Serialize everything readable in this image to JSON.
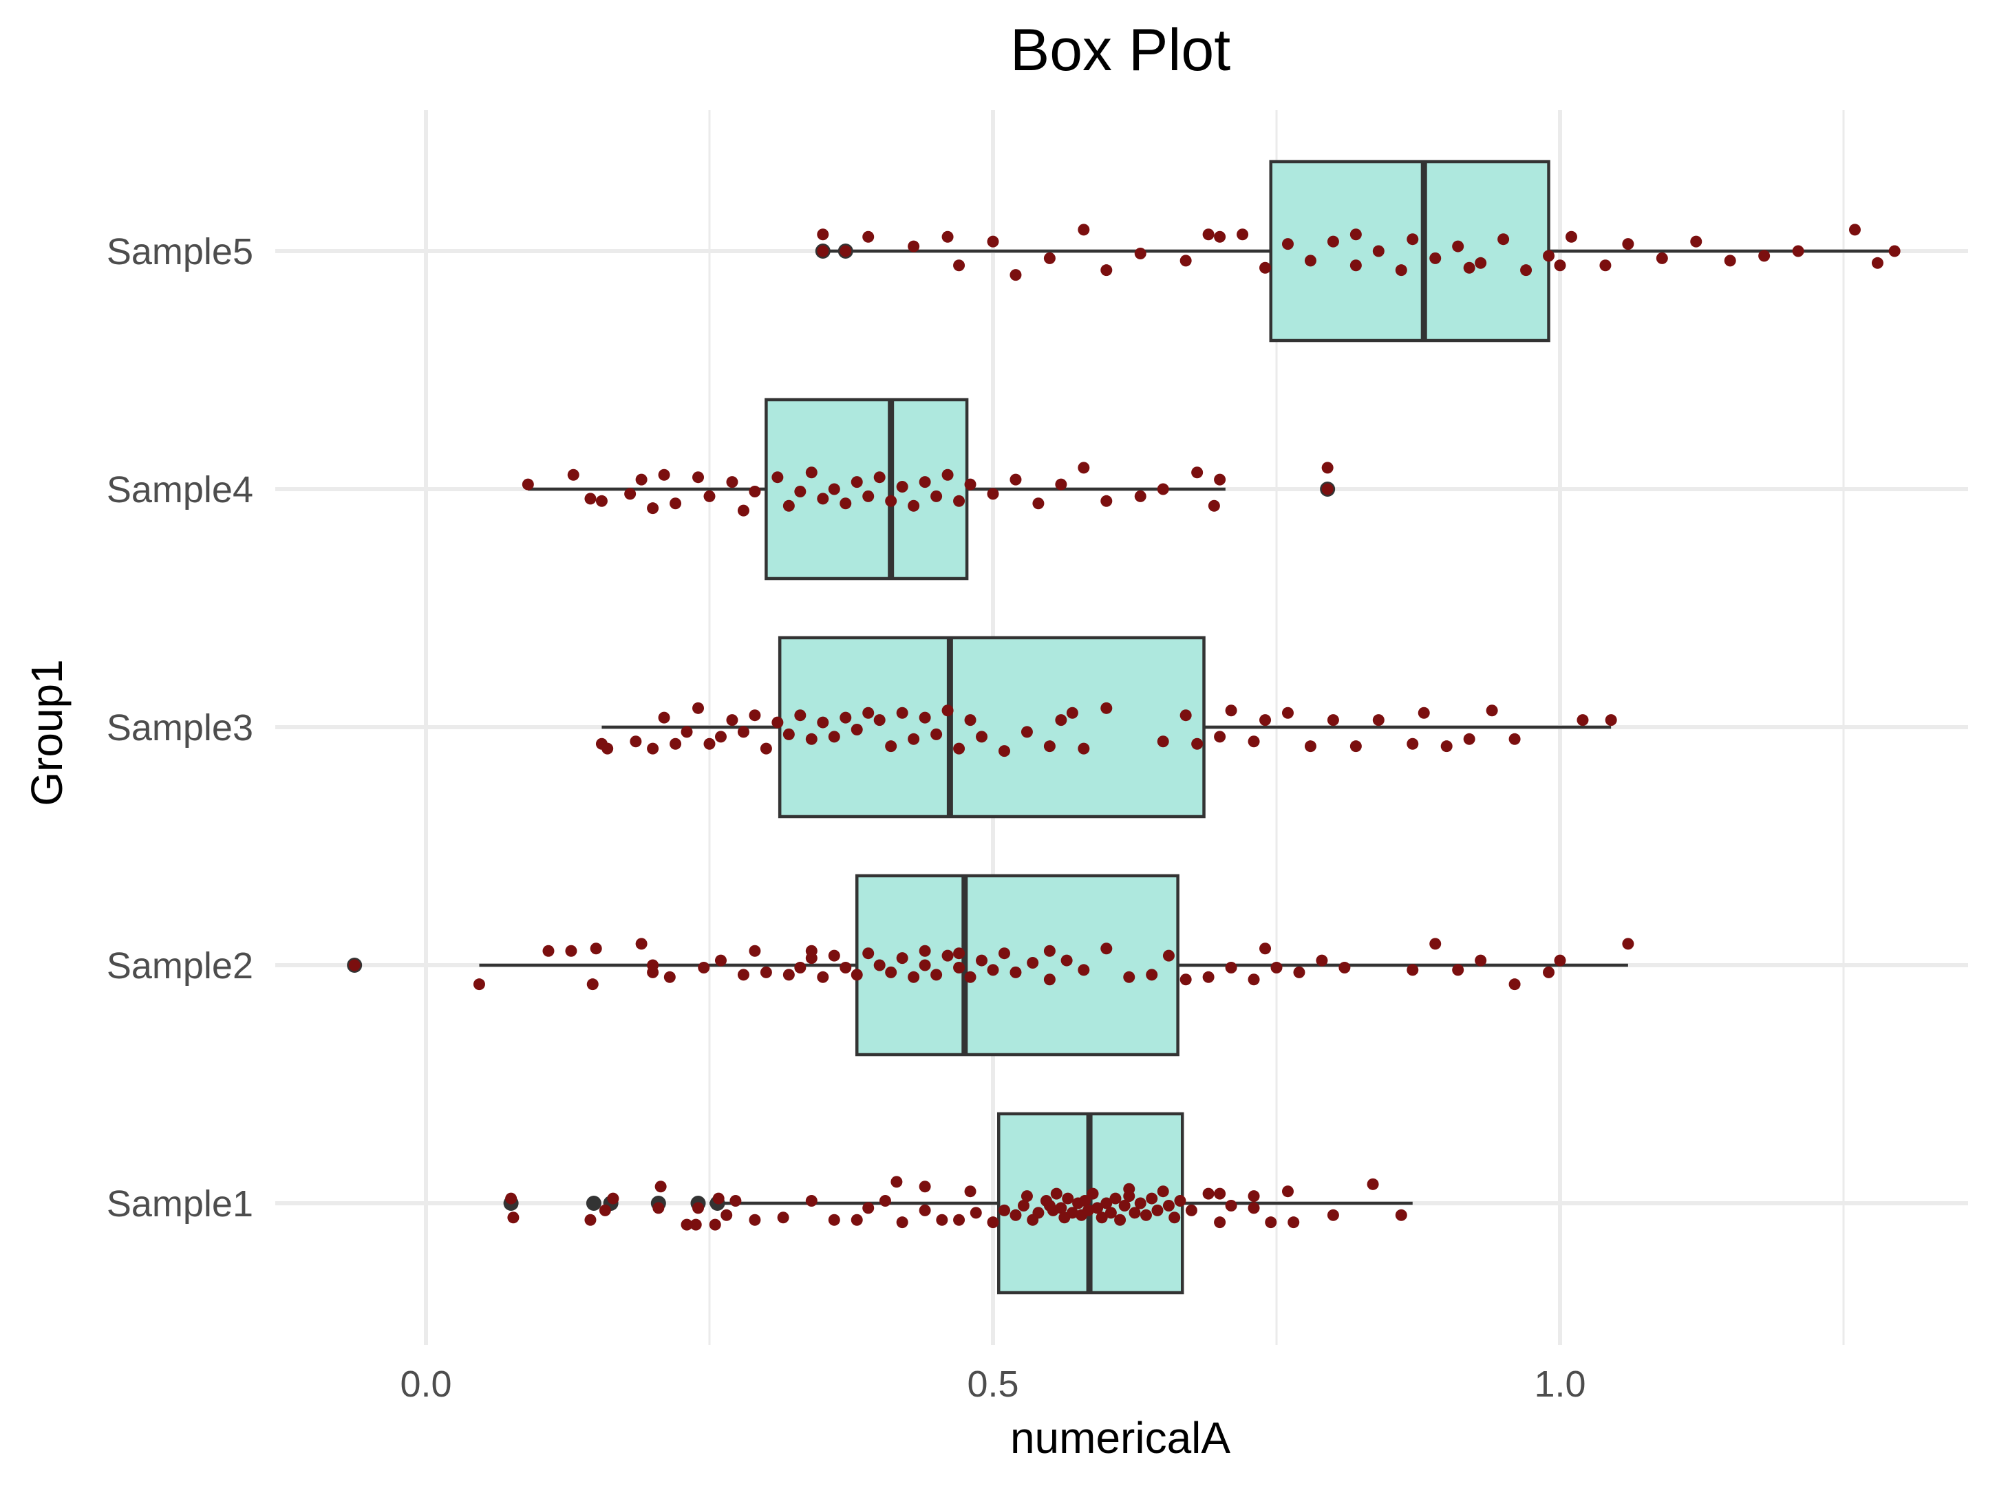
{
  "chart_data": {
    "type": "box",
    "title": "Box Plot",
    "xlabel": "numericalA",
    "ylabel": "Group1",
    "xlim": [
      -0.155,
      1.365
    ],
    "x_ticks": [
      0.0,
      0.5,
      1.0
    ],
    "x_tick_labels": [
      "0.0",
      "0.5",
      "1.0"
    ],
    "grid": true,
    "point_color": "#7b0f0f",
    "box_fill": "#aee8de",
    "categories": [
      "Sample1",
      "Sample2",
      "Sample3",
      "Sample4",
      "Sample5"
    ],
    "boxes": [
      {
        "name": "Sample1",
        "whisker_low": 0.25,
        "q1": 0.505,
        "median": 0.585,
        "q3": 0.667,
        "whisker_high": 0.87,
        "outliers": [
          0.075,
          0.148,
          0.163,
          0.205,
          0.24,
          0.257
        ],
        "points": [
          [
            0.075,
            -0.02
          ],
          [
            0.077,
            0.06
          ],
          [
            0.145,
            0.07
          ],
          [
            0.158,
            0.03
          ],
          [
            0.165,
            -0.02
          ],
          [
            0.205,
            0.02
          ],
          [
            0.207,
            -0.07
          ],
          [
            0.238,
            0.09
          ],
          [
            0.24,
            0.02
          ],
          [
            0.255,
            0.09
          ],
          [
            0.258,
            -0.02
          ],
          [
            0.273,
            -0.01
          ],
          [
            0.29,
            0.07
          ],
          [
            0.315,
            0.06
          ],
          [
            0.34,
            -0.01
          ],
          [
            0.36,
            0.07
          ],
          [
            0.38,
            0.07
          ],
          [
            0.39,
            0.02
          ],
          [
            0.405,
            -0.01
          ],
          [
            0.42,
            0.08
          ],
          [
            0.44,
            0.03
          ],
          [
            0.455,
            0.07
          ],
          [
            0.47,
            0.07
          ],
          [
            0.48,
            -0.05
          ],
          [
            0.485,
            0.04
          ],
          [
            0.5,
            0.08
          ],
          [
            0.51,
            0.03
          ],
          [
            0.52,
            0.05
          ],
          [
            0.527,
            0.01
          ],
          [
            0.53,
            -0.03
          ],
          [
            0.535,
            0.07
          ],
          [
            0.54,
            0.04
          ],
          [
            0.547,
            -0.01
          ],
          [
            0.55,
            0.01
          ],
          [
            0.553,
            0.03
          ],
          [
            0.556,
            -0.04
          ],
          [
            0.56,
            0.02
          ],
          [
            0.563,
            0.06
          ],
          [
            0.566,
            -0.02
          ],
          [
            0.57,
            0.04
          ],
          [
            0.575,
            0.0
          ],
          [
            0.578,
            0.05
          ],
          [
            0.581,
            -0.01
          ],
          [
            0.584,
            0.03
          ],
          [
            0.588,
            -0.04
          ],
          [
            0.592,
            0.02
          ],
          [
            0.596,
            0.06
          ],
          [
            0.6,
            0.0
          ],
          [
            0.604,
            0.04
          ],
          [
            0.608,
            -0.02
          ],
          [
            0.612,
            0.07
          ],
          [
            0.616,
            0.01
          ],
          [
            0.62,
            -0.03
          ],
          [
            0.625,
            0.04
          ],
          [
            0.63,
            0.0
          ],
          [
            0.635,
            0.05
          ],
          [
            0.64,
            -0.02
          ],
          [
            0.645,
            0.03
          ],
          [
            0.65,
            -0.05
          ],
          [
            0.655,
            0.01
          ],
          [
            0.66,
            0.06
          ],
          [
            0.665,
            -0.01
          ],
          [
            0.675,
            0.03
          ],
          [
            0.69,
            -0.04
          ],
          [
            0.7,
            0.08
          ],
          [
            0.71,
            0.01
          ],
          [
            0.73,
            -0.03
          ],
          [
            0.745,
            0.08
          ],
          [
            0.76,
            -0.05
          ],
          [
            0.765,
            0.08
          ],
          [
            0.8,
            0.05
          ],
          [
            0.835,
            -0.08
          ],
          [
            0.86,
            0.05
          ],
          [
            0.23,
            0.09
          ],
          [
            0.265,
            0.05
          ],
          [
            0.415,
            -0.09
          ],
          [
            0.44,
            -0.07
          ],
          [
            0.62,
            -0.06
          ],
          [
            0.7,
            -0.04
          ],
          [
            0.73,
            0.02
          ]
        ]
      },
      {
        "name": "Sample2",
        "whisker_low": 0.047,
        "q1": 0.38,
        "median": 0.475,
        "q3": 0.663,
        "whisker_high": 1.06,
        "outliers": [
          -0.063
        ],
        "points": [
          [
            -0.063,
            0.0
          ],
          [
            0.047,
            0.08
          ],
          [
            0.108,
            -0.06
          ],
          [
            0.128,
            -0.06
          ],
          [
            0.147,
            0.08
          ],
          [
            0.15,
            -0.07
          ],
          [
            0.19,
            -0.09
          ],
          [
            0.2,
            0.03
          ],
          [
            0.215,
            0.05
          ],
          [
            0.245,
            0.01
          ],
          [
            0.26,
            -0.02
          ],
          [
            0.28,
            0.04
          ],
          [
            0.29,
            -0.06
          ],
          [
            0.3,
            0.03
          ],
          [
            0.32,
            0.04
          ],
          [
            0.33,
            0.01
          ],
          [
            0.34,
            -0.03
          ],
          [
            0.35,
            0.05
          ],
          [
            0.36,
            -0.04
          ],
          [
            0.37,
            0.01
          ],
          [
            0.38,
            0.04
          ],
          [
            0.39,
            -0.05
          ],
          [
            0.4,
            0.0
          ],
          [
            0.41,
            0.03
          ],
          [
            0.42,
            -0.03
          ],
          [
            0.43,
            0.05
          ],
          [
            0.44,
            0.0
          ],
          [
            0.45,
            0.04
          ],
          [
            0.46,
            -0.04
          ],
          [
            0.47,
            0.01
          ],
          [
            0.48,
            0.05
          ],
          [
            0.49,
            -0.02
          ],
          [
            0.5,
            0.02
          ],
          [
            0.51,
            -0.05
          ],
          [
            0.52,
            0.03
          ],
          [
            0.535,
            -0.01
          ],
          [
            0.55,
            0.06
          ],
          [
            0.565,
            -0.02
          ],
          [
            0.58,
            0.02
          ],
          [
            0.6,
            -0.07
          ],
          [
            0.62,
            0.05
          ],
          [
            0.64,
            0.04
          ],
          [
            0.655,
            -0.04
          ],
          [
            0.67,
            0.06
          ],
          [
            0.69,
            0.05
          ],
          [
            0.71,
            0.01
          ],
          [
            0.73,
            0.06
          ],
          [
            0.74,
            -0.07
          ],
          [
            0.75,
            0.01
          ],
          [
            0.77,
            0.03
          ],
          [
            0.79,
            -0.02
          ],
          [
            0.81,
            0.01
          ],
          [
            0.87,
            0.02
          ],
          [
            0.89,
            -0.09
          ],
          [
            0.91,
            0.02
          ],
          [
            0.93,
            -0.02
          ],
          [
            0.96,
            0.08
          ],
          [
            0.99,
            0.03
          ],
          [
            1.0,
            -0.02
          ],
          [
            1.06,
            -0.09
          ],
          [
            0.44,
            -0.06
          ],
          [
            0.47,
            -0.05
          ],
          [
            0.55,
            -0.06
          ],
          [
            0.2,
            0.0
          ],
          [
            0.34,
            -0.06
          ]
        ]
      },
      {
        "name": "Sample3",
        "whisker_low": 0.155,
        "q1": 0.312,
        "median": 0.462,
        "q3": 0.686,
        "whisker_high": 1.045,
        "outliers": [],
        "points": [
          [
            0.155,
            0.07
          ],
          [
            0.16,
            0.09
          ],
          [
            0.185,
            0.06
          ],
          [
            0.2,
            0.09
          ],
          [
            0.21,
            -0.04
          ],
          [
            0.22,
            0.07
          ],
          [
            0.23,
            0.02
          ],
          [
            0.24,
            -0.08
          ],
          [
            0.25,
            0.07
          ],
          [
            0.26,
            0.04
          ],
          [
            0.27,
            -0.03
          ],
          [
            0.28,
            0.02
          ],
          [
            0.29,
            -0.05
          ],
          [
            0.3,
            0.09
          ],
          [
            0.31,
            -0.02
          ],
          [
            0.32,
            0.03
          ],
          [
            0.33,
            -0.05
          ],
          [
            0.34,
            0.05
          ],
          [
            0.35,
            -0.02
          ],
          [
            0.36,
            0.04
          ],
          [
            0.37,
            -0.04
          ],
          [
            0.38,
            0.01
          ],
          [
            0.39,
            -0.06
          ],
          [
            0.4,
            -0.03
          ],
          [
            0.41,
            0.08
          ],
          [
            0.42,
            -0.06
          ],
          [
            0.43,
            0.05
          ],
          [
            0.44,
            -0.04
          ],
          [
            0.45,
            0.03
          ],
          [
            0.46,
            -0.07
          ],
          [
            0.47,
            0.09
          ],
          [
            0.48,
            -0.03
          ],
          [
            0.49,
            0.04
          ],
          [
            0.51,
            0.1
          ],
          [
            0.53,
            0.02
          ],
          [
            0.55,
            0.08
          ],
          [
            0.56,
            -0.03
          ],
          [
            0.57,
            -0.06
          ],
          [
            0.58,
            0.09
          ],
          [
            0.6,
            -0.08
          ],
          [
            0.65,
            0.06
          ],
          [
            0.67,
            -0.05
          ],
          [
            0.68,
            0.07
          ],
          [
            0.7,
            0.04
          ],
          [
            0.71,
            -0.07
          ],
          [
            0.73,
            0.06
          ],
          [
            0.74,
            -0.03
          ],
          [
            0.76,
            -0.06
          ],
          [
            0.78,
            0.08
          ],
          [
            0.8,
            -0.03
          ],
          [
            0.82,
            0.08
          ],
          [
            0.84,
            -0.03
          ],
          [
            0.87,
            0.07
          ],
          [
            0.88,
            -0.06
          ],
          [
            0.9,
            0.08
          ],
          [
            0.92,
            0.05
          ],
          [
            0.94,
            -0.07
          ],
          [
            0.96,
            0.05
          ],
          [
            1.02,
            -0.03
          ],
          [
            1.045,
            -0.03
          ]
        ]
      },
      {
        "name": "Sample4",
        "whisker_low": 0.09,
        "q1": 0.3,
        "median": 0.41,
        "q3": 0.477,
        "whisker_high": 0.705,
        "outliers": [
          0.795
        ],
        "points": [
          [
            0.09,
            -0.02
          ],
          [
            0.13,
            -0.06
          ],
          [
            0.145,
            0.04
          ],
          [
            0.155,
            0.05
          ],
          [
            0.18,
            0.02
          ],
          [
            0.19,
            -0.04
          ],
          [
            0.2,
            0.08
          ],
          [
            0.21,
            -0.06
          ],
          [
            0.22,
            0.06
          ],
          [
            0.24,
            -0.05
          ],
          [
            0.25,
            0.03
          ],
          [
            0.27,
            -0.03
          ],
          [
            0.28,
            0.09
          ],
          [
            0.29,
            0.01
          ],
          [
            0.31,
            -0.05
          ],
          [
            0.32,
            0.07
          ],
          [
            0.33,
            0.01
          ],
          [
            0.34,
            -0.07
          ],
          [
            0.35,
            0.04
          ],
          [
            0.36,
            0.0
          ],
          [
            0.37,
            0.06
          ],
          [
            0.38,
            -0.03
          ],
          [
            0.39,
            0.03
          ],
          [
            0.4,
            -0.05
          ],
          [
            0.41,
            0.05
          ],
          [
            0.42,
            -0.01
          ],
          [
            0.43,
            0.07
          ],
          [
            0.44,
            -0.03
          ],
          [
            0.45,
            0.03
          ],
          [
            0.46,
            -0.06
          ],
          [
            0.47,
            0.05
          ],
          [
            0.48,
            -0.02
          ],
          [
            0.5,
            0.02
          ],
          [
            0.52,
            -0.04
          ],
          [
            0.54,
            0.06
          ],
          [
            0.56,
            -0.02
          ],
          [
            0.58,
            -0.09
          ],
          [
            0.6,
            0.05
          ],
          [
            0.63,
            0.03
          ],
          [
            0.65,
            0.0
          ],
          [
            0.68,
            -0.07
          ],
          [
            0.695,
            0.07
          ],
          [
            0.7,
            -0.04
          ],
          [
            0.795,
            -0.09
          ],
          [
            0.795,
            0.0
          ]
        ]
      },
      {
        "name": "Sample5",
        "whisker_low": 0.35,
        "q1": 0.745,
        "median": 0.88,
        "q3": 0.99,
        "whisker_high": 1.295,
        "outliers": [
          0.35,
          0.37
        ],
        "points": [
          [
            0.35,
            0.0
          ],
          [
            0.37,
            0.0
          ],
          [
            0.35,
            -0.07
          ],
          [
            0.39,
            -0.06
          ],
          [
            0.43,
            -0.02
          ],
          [
            0.46,
            -0.06
          ],
          [
            0.47,
            0.06
          ],
          [
            0.5,
            -0.04
          ],
          [
            0.52,
            0.1
          ],
          [
            0.55,
            0.03
          ],
          [
            0.58,
            -0.09
          ],
          [
            0.6,
            0.08
          ],
          [
            0.63,
            0.01
          ],
          [
            0.67,
            0.04
          ],
          [
            0.7,
            -0.06
          ],
          [
            0.74,
            0.07
          ],
          [
            0.76,
            -0.03
          ],
          [
            0.78,
            0.04
          ],
          [
            0.8,
            -0.04
          ],
          [
            0.82,
            0.06
          ],
          [
            0.84,
            0.0
          ],
          [
            0.86,
            0.08
          ],
          [
            0.87,
            -0.05
          ],
          [
            0.89,
            0.03
          ],
          [
            0.91,
            -0.02
          ],
          [
            0.93,
            0.05
          ],
          [
            0.95,
            -0.05
          ],
          [
            0.97,
            0.08
          ],
          [
            0.99,
            0.02
          ],
          [
            1.01,
            -0.06
          ],
          [
            1.04,
            0.06
          ],
          [
            1.06,
            -0.03
          ],
          [
            1.09,
            0.03
          ],
          [
            1.12,
            -0.04
          ],
          [
            1.15,
            0.04
          ],
          [
            1.18,
            0.02
          ],
          [
            1.21,
            0.0
          ],
          [
            1.26,
            -0.09
          ],
          [
            1.28,
            0.05
          ],
          [
            1.295,
            0.0
          ],
          [
            0.69,
            -0.07
          ],
          [
            0.72,
            -0.07
          ],
          [
            0.82,
            -0.07
          ],
          [
            0.92,
            0.07
          ],
          [
            1.0,
            0.06
          ]
        ]
      }
    ]
  }
}
